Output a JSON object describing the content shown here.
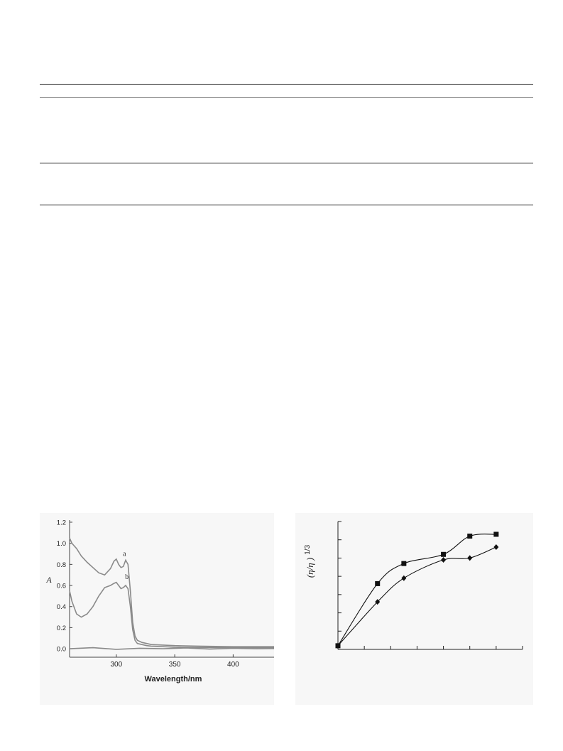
{
  "table_rules": 4,
  "chart_data": [
    {
      "type": "line",
      "xlabel": "Wavelength/nm",
      "ylabel": "A",
      "xlim": [
        260,
        435
      ],
      "ylim": [
        -0.08,
        1.22
      ],
      "x_ticks": [
        "300",
        "350",
        "400"
      ],
      "y_ticks": [
        "0.0",
        "0.2",
        "0.4",
        "0.6",
        "0.8",
        "1.0",
        "1.2"
      ],
      "grid": false,
      "line_color": "#8a8a8a",
      "series": [
        {
          "name": "a",
          "x": [
            260,
            262,
            266,
            270,
            275,
            280,
            285,
            290,
            295,
            298,
            300,
            302,
            304,
            306,
            308,
            310,
            312,
            314,
            316,
            318,
            322,
            326,
            330,
            340,
            350,
            370,
            400,
            435
          ],
          "y": [
            1.05,
            1.0,
            0.95,
            0.88,
            0.82,
            0.77,
            0.72,
            0.7,
            0.76,
            0.83,
            0.85,
            0.8,
            0.77,
            0.78,
            0.84,
            0.8,
            0.55,
            0.25,
            0.12,
            0.08,
            0.06,
            0.05,
            0.04,
            0.035,
            0.03,
            0.025,
            0.02,
            0.02
          ]
        },
        {
          "name": "b",
          "x": [
            260,
            262,
            266,
            270,
            275,
            280,
            285,
            290,
            295,
            298,
            300,
            302,
            304,
            306,
            308,
            310,
            312,
            314,
            316,
            318,
            322,
            326,
            330,
            340,
            350,
            370,
            400,
            435
          ],
          "y": [
            0.55,
            0.45,
            0.33,
            0.3,
            0.33,
            0.4,
            0.5,
            0.58,
            0.6,
            0.62,
            0.63,
            0.6,
            0.57,
            0.58,
            0.6,
            0.57,
            0.4,
            0.18,
            0.08,
            0.05,
            0.04,
            0.03,
            0.025,
            0.02,
            0.015,
            0.012,
            0.01,
            0.01
          ]
        },
        {
          "name": "",
          "x": [
            260,
            280,
            300,
            320,
            340,
            360,
            380,
            400,
            420,
            435
          ],
          "y": [
            0.0,
            0.01,
            -0.005,
            0.005,
            0.0,
            0.008,
            -0.003,
            0.004,
            0.0,
            0.002
          ]
        }
      ],
      "annotations": [
        "a",
        "b"
      ]
    },
    {
      "type": "line",
      "ylabel_main": "(η/η )",
      "ylabel_sup": "1/3",
      "xlim": [
        0,
        7
      ],
      "ylim": [
        0,
        7
      ],
      "x_tick_count": 7,
      "y_tick_count": 7,
      "grid": false,
      "series": [
        {
          "name": "",
          "marker": "square",
          "x": [
            0,
            1.5,
            2.5,
            4.0,
            5.0,
            6.0
          ],
          "y": [
            0.2,
            3.6,
            4.7,
            5.2,
            6.2,
            6.3
          ]
        },
        {
          "name": "",
          "marker": "diamond",
          "x": [
            0,
            1.5,
            2.5,
            4.0,
            5.0,
            6.0
          ],
          "y": [
            0.2,
            2.6,
            3.9,
            4.9,
            5.0,
            5.6
          ]
        }
      ]
    }
  ]
}
